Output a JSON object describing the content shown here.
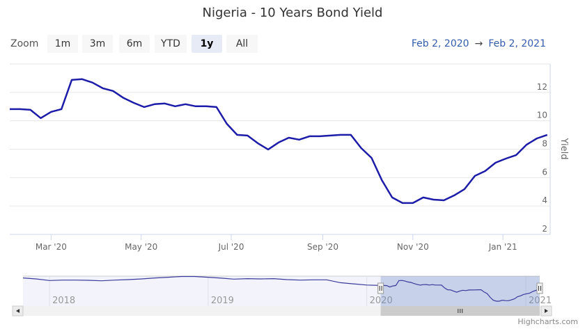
{
  "chart_data": {
    "type": "line",
    "title": "Nigeria - 10 Years Bond Yield",
    "ylabel": "Yield",
    "xlabel": "",
    "ylim": [
      2,
      14
    ],
    "yticks": [
      "2",
      "4",
      "6",
      "8",
      "10",
      "12"
    ],
    "xticks": [
      {
        "label": "Mar '20",
        "date": "2020-03-01"
      },
      {
        "label": "May '20",
        "date": "2020-05-01"
      },
      {
        "label": "Jul '20",
        "date": "2020-07-01"
      },
      {
        "label": "Sep '20",
        "date": "2020-09-01"
      },
      {
        "label": "Nov '20",
        "date": "2020-11-01"
      },
      {
        "label": "Jan '21",
        "date": "2021-01-01"
      }
    ],
    "xlim": [
      "2020-02-02",
      "2021-02-02"
    ],
    "grid": true,
    "line_color": "#1c1ca8",
    "x": [
      "2020-02-02",
      "2020-02-09",
      "2020-02-16",
      "2020-02-23",
      "2020-03-01",
      "2020-03-08",
      "2020-03-15",
      "2020-03-22",
      "2020-03-29",
      "2020-04-05",
      "2020-04-12",
      "2020-04-19",
      "2020-04-26",
      "2020-05-03",
      "2020-05-10",
      "2020-05-17",
      "2020-05-24",
      "2020-05-31",
      "2020-06-07",
      "2020-06-14",
      "2020-06-21",
      "2020-06-28",
      "2020-07-05",
      "2020-07-12",
      "2020-07-19",
      "2020-07-26",
      "2020-08-02",
      "2020-08-09",
      "2020-08-16",
      "2020-08-23",
      "2020-08-30",
      "2020-09-06",
      "2020-09-13",
      "2020-09-20",
      "2020-09-27",
      "2020-10-04",
      "2020-10-11",
      "2020-10-18",
      "2020-10-25",
      "2020-11-01",
      "2020-11-08",
      "2020-11-15",
      "2020-11-22",
      "2020-11-29",
      "2020-12-06",
      "2020-12-13",
      "2020-12-20",
      "2020-12-27",
      "2021-01-03",
      "2021-01-10",
      "2021-01-17",
      "2021-01-24",
      "2021-01-31"
    ],
    "series": [
      {
        "values": [
          10.82,
          10.82,
          10.77,
          10.19,
          10.63,
          10.82,
          12.88,
          12.93,
          12.69,
          12.29,
          12.1,
          11.61,
          11.26,
          10.97,
          11.17,
          11.22,
          11.02,
          11.17,
          11.02,
          11.02,
          10.97,
          9.79,
          9.01,
          8.96,
          8.42,
          7.98,
          8.47,
          8.81,
          8.67,
          8.91,
          8.91,
          8.96,
          9.01,
          9.01,
          8.08,
          7.39,
          5.82,
          4.6,
          4.21,
          4.21,
          4.6,
          4.45,
          4.4,
          4.75,
          5.19,
          6.12,
          6.46,
          7.05,
          7.34,
          7.59,
          8.32,
          8.76,
          9.01
        ]
      }
    ],
    "navigator": {
      "xticks": [
        "2018",
        "2019",
        "2020",
        "2021"
      ],
      "x": [
        "2017-11-01",
        "2017-12-01",
        "2018-01-01",
        "2018-02-01",
        "2018-03-01",
        "2018-04-01",
        "2018-05-01",
        "2018-06-01",
        "2018-07-01",
        "2018-08-01",
        "2018-09-01",
        "2018-10-01",
        "2018-11-01",
        "2018-12-01",
        "2019-01-01",
        "2019-02-01",
        "2019-03-01",
        "2019-04-01",
        "2019-05-01",
        "2019-06-01",
        "2019-07-01",
        "2019-08-01",
        "2019-09-01",
        "2019-10-01",
        "2019-11-01",
        "2019-12-01",
        "2020-01-01",
        "2020-02-02"
      ],
      "values": [
        14.0,
        13.6,
        12.9,
        13.1,
        13.1,
        13.0,
        12.8,
        13.1,
        13.3,
        13.6,
        14.0,
        14.3,
        14.6,
        14.6,
        14.3,
        13.9,
        13.5,
        13.7,
        13.6,
        13.7,
        13.3,
        13.1,
        13.2,
        13.2,
        12.0,
        11.5,
        11.0,
        10.82
      ],
      "selected_range": [
        "2020-02-02",
        "2021-02-02"
      ]
    }
  },
  "toolbar": {
    "zoom_label": "Zoom",
    "buttons": [
      "1m",
      "3m",
      "6m",
      "YTD",
      "1y",
      "All"
    ],
    "selected": "1y",
    "from_date": "Feb 2, 2020",
    "arrow": "→",
    "to_date": "Feb 2, 2021"
  },
  "credits": "Highcharts.com"
}
